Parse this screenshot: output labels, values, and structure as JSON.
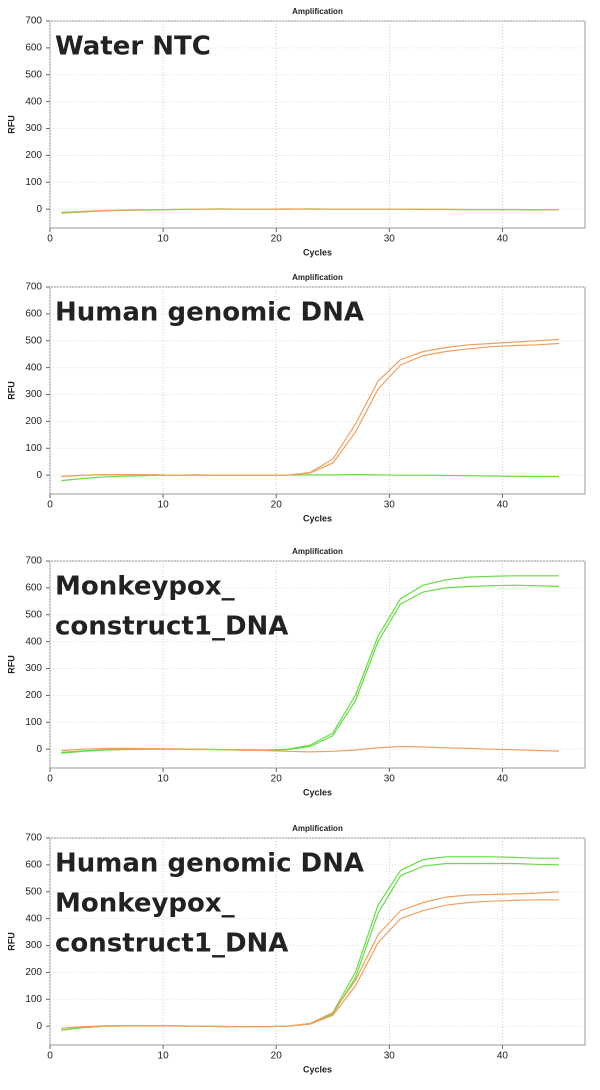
{
  "chart_data": [
    {
      "type": "line",
      "title": "Amplification",
      "x_label": "Cycles",
      "y_label": "RFU",
      "annotations": [
        {
          "text": "Water NTC",
          "color": "#000000"
        }
      ],
      "x": [
        1,
        3,
        5,
        7,
        9,
        11,
        13,
        15,
        17,
        19,
        21,
        23,
        25,
        27,
        29,
        31,
        33,
        35,
        37,
        39,
        41,
        43,
        45
      ],
      "xlim": [
        0,
        47.3
      ],
      "xticks": [
        0,
        10,
        20,
        30,
        40
      ],
      "ylim": [
        -70,
        700
      ],
      "yticks": [
        0,
        100,
        200,
        300,
        400,
        500,
        600,
        700
      ],
      "grid": true,
      "series": [
        {
          "color": "#66dd44",
          "values": [
            -15,
            -10,
            -6,
            -4,
            -3,
            -1,
            0,
            1,
            0,
            0,
            0,
            1,
            0,
            0,
            0,
            0,
            -1,
            -1,
            -2,
            -2,
            -2,
            -3,
            -2
          ]
        },
        {
          "color": "#f0a060",
          "values": [
            -12,
            -8,
            -5,
            -3,
            -2,
            -1,
            0,
            0,
            0,
            0,
            1,
            0,
            0,
            0,
            0,
            0,
            0,
            0,
            -1,
            -1,
            -1,
            -2,
            -2
          ]
        }
      ]
    },
    {
      "type": "line",
      "title": "Amplification",
      "x_label": "Cycles",
      "y_label": "RFU",
      "annotations": [
        {
          "text": "Human genomic DNA",
          "color": "#f4b183"
        }
      ],
      "x": [
        1,
        3,
        5,
        7,
        9,
        11,
        13,
        15,
        17,
        19,
        21,
        23,
        25,
        27,
        29,
        31,
        33,
        35,
        37,
        39,
        41,
        43,
        45
      ],
      "xlim": [
        0,
        47.3
      ],
      "xticks": [
        0,
        10,
        20,
        30,
        40
      ],
      "ylim": [
        -70,
        700
      ],
      "yticks": [
        0,
        100,
        200,
        300,
        400,
        500,
        600,
        700
      ],
      "grid": true,
      "series": [
        {
          "color": "#66dd44",
          "values": [
            -20,
            -12,
            -6,
            -3,
            -1,
            0,
            1,
            0,
            0,
            0,
            0,
            1,
            1,
            2,
            1,
            0,
            0,
            -1,
            -2,
            -3,
            -4,
            -5,
            -5
          ]
        },
        {
          "color": "#f0a060",
          "values": [
            -5,
            0,
            2,
            2,
            1,
            0,
            0,
            0,
            0,
            0,
            0,
            10,
            60,
            190,
            350,
            430,
            460,
            475,
            485,
            490,
            495,
            500,
            505
          ]
        },
        {
          "color": "#f0a060",
          "values": [
            -5,
            0,
            2,
            2,
            1,
            0,
            0,
            0,
            0,
            0,
            0,
            8,
            45,
            160,
            320,
            410,
            445,
            460,
            470,
            478,
            482,
            485,
            490
          ]
        }
      ]
    },
    {
      "type": "line",
      "title": "Amplification",
      "x_label": "Cycles",
      "y_label": "RFU",
      "annotations": [
        {
          "text": "Monkeypox_",
          "color": "#92d050"
        },
        {
          "text": "construct1_DNA",
          "color": "#92d050"
        }
      ],
      "x": [
        1,
        3,
        5,
        7,
        9,
        11,
        13,
        15,
        17,
        19,
        21,
        23,
        25,
        27,
        29,
        31,
        33,
        35,
        37,
        39,
        41,
        43,
        45
      ],
      "xlim": [
        0,
        47.3
      ],
      "xticks": [
        0,
        10,
        20,
        30,
        40
      ],
      "ylim": [
        -70,
        700
      ],
      "yticks": [
        0,
        100,
        200,
        300,
        400,
        500,
        600,
        700
      ],
      "grid": true,
      "series": [
        {
          "color": "#66dd44",
          "values": [
            -15,
            -8,
            -3,
            -1,
            0,
            0,
            0,
            -1,
            -2,
            -3,
            0,
            15,
            60,
            200,
            420,
            560,
            610,
            630,
            640,
            643,
            645,
            645,
            645
          ]
        },
        {
          "color": "#66dd44",
          "values": [
            -12,
            -6,
            -2,
            0,
            1,
            0,
            -1,
            -2,
            -3,
            -4,
            -2,
            10,
            50,
            180,
            400,
            540,
            585,
            600,
            605,
            608,
            610,
            608,
            605
          ]
        },
        {
          "color": "#f0a060",
          "values": [
            -5,
            0,
            3,
            3,
            2,
            1,
            0,
            -2,
            -4,
            -5,
            -8,
            -10,
            -8,
            -3,
            5,
            10,
            8,
            5,
            3,
            0,
            -2,
            -5,
            -7
          ]
        }
      ]
    },
    {
      "type": "line",
      "title": "Amplification",
      "x_label": "Cycles",
      "y_label": "RFU",
      "annotations": [
        {
          "text": "Human genomic DNA",
          "color": "#f4b183"
        },
        {
          "text": "Monkeypox_",
          "color": "#92d050"
        },
        {
          "text": "construct1_DNA",
          "color": "#92d050"
        }
      ],
      "x": [
        1,
        3,
        5,
        7,
        9,
        11,
        13,
        15,
        17,
        19,
        21,
        23,
        25,
        27,
        29,
        31,
        33,
        35,
        37,
        39,
        41,
        43,
        45
      ],
      "xlim": [
        0,
        47.3
      ],
      "xticks": [
        0,
        10,
        20,
        30,
        40
      ],
      "ylim": [
        -70,
        700
      ],
      "yticks": [
        0,
        100,
        200,
        300,
        400,
        500,
        600,
        700
      ],
      "grid": true,
      "series": [
        {
          "color": "#66dd44",
          "values": [
            -15,
            -5,
            0,
            1,
            2,
            1,
            0,
            -1,
            -2,
            -2,
            0,
            10,
            50,
            200,
            450,
            580,
            620,
            630,
            630,
            630,
            628,
            625,
            625
          ]
        },
        {
          "color": "#66dd44",
          "values": [
            -15,
            -5,
            0,
            1,
            2,
            1,
            0,
            -1,
            -2,
            -2,
            0,
            8,
            45,
            180,
            420,
            560,
            595,
            605,
            605,
            605,
            605,
            602,
            600
          ]
        },
        {
          "color": "#f0a060",
          "values": [
            -8,
            -2,
            1,
            2,
            2,
            1,
            0,
            -1,
            -2,
            -2,
            0,
            10,
            50,
            170,
            340,
            430,
            460,
            480,
            488,
            490,
            492,
            495,
            500
          ]
        },
        {
          "color": "#f0a060",
          "values": [
            -8,
            -2,
            1,
            2,
            2,
            1,
            0,
            -1,
            -2,
            -2,
            0,
            8,
            40,
            150,
            310,
            400,
            430,
            450,
            460,
            465,
            468,
            470,
            470
          ]
        }
      ]
    }
  ]
}
